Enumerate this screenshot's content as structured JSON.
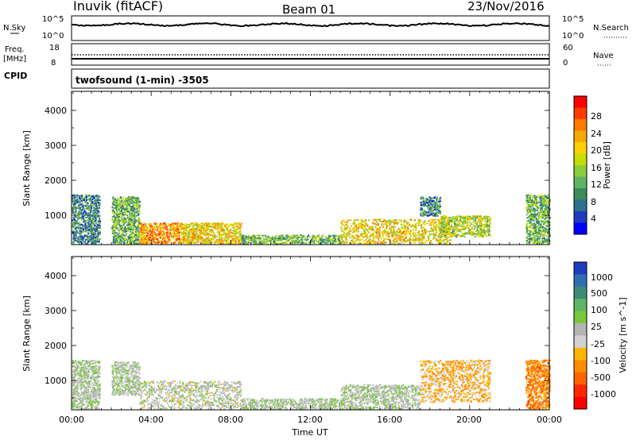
{
  "header": {
    "station": "Inuvik (fitACF)",
    "beam": "Beam 01",
    "date": "23/Nov/2016"
  },
  "noise_panel": {
    "left_label": "N.Sky",
    "left_ticks": [
      "10^5",
      "10^0"
    ],
    "right_label": "N.Search",
    "right_ticks": [
      "10^5",
      "10^0"
    ]
  },
  "freq_panel": {
    "left_label": "Freq.",
    "left_unit": "[MHz]",
    "left_ticks": [
      "18",
      "8"
    ],
    "right_label": "Nave",
    "right_ticks": [
      "60",
      "0"
    ]
  },
  "cpid": {
    "label": "CPID",
    "value": "twofsound (1-min) -3505"
  },
  "axes": {
    "ylabel": "Slant Range [km]",
    "xlabel": "Time UT",
    "y_ticks": [
      "4000",
      "3000",
      "2000",
      "1000"
    ],
    "x_ticks": [
      "00:00",
      "04:00",
      "08:00",
      "12:00",
      "16:00",
      "20:00",
      "00:00"
    ]
  },
  "power_colorbar": {
    "label": "Power [dB]",
    "ticks": [
      "28",
      "24",
      "20",
      "16",
      "12",
      "8",
      "4"
    ],
    "colors": [
      "#ff0000",
      "#ff3a00",
      "#ff7800",
      "#f5a800",
      "#ffd000",
      "#c8dc00",
      "#8ccd3c",
      "#5fb464",
      "#3c8c5a",
      "#2f6e8c",
      "#1e3cbe",
      "#0000ff"
    ]
  },
  "velocity_colorbar": {
    "label": "Velocity [m s^-1]",
    "ticks": [
      "1000",
      "500",
      "100",
      "25",
      "-25",
      "-100",
      "-500",
      "-1000"
    ],
    "colors": [
      "#1e3cbe",
      "#2f6eb4",
      "#3c8c78",
      "#5fb464",
      "#78c83c",
      "#b4b4b4",
      "#d2d2d2",
      "#ffb400",
      "#ff8c00",
      "#ff6400",
      "#ff2800",
      "#ff0000"
    ]
  },
  "chart_data": [
    {
      "type": "heatmap",
      "title": "Power",
      "xlabel": "Time UT",
      "ylabel": "Slant Range [km]",
      "xlim": [
        "00:00",
        "24:00"
      ],
      "ylim": [
        180,
        4600
      ],
      "colorbar": {
        "label": "Power [dB]",
        "range": [
          0,
          32
        ]
      },
      "scatter_regions": [
        {
          "t_start": 0.0,
          "t_end": 1.4,
          "range_min": 200,
          "range_max": 1600,
          "typical_db": 8
        },
        {
          "t_start": 2.0,
          "t_end": 3.4,
          "range_min": 200,
          "range_max": 1550,
          "typical_db": 12
        },
        {
          "t_start": 3.4,
          "t_end": 5.4,
          "range_min": 200,
          "range_max": 800,
          "typical_db": 24
        },
        {
          "t_start": 5.4,
          "t_end": 8.5,
          "range_min": 200,
          "range_max": 800,
          "typical_db": 20
        },
        {
          "t_start": 8.5,
          "t_end": 13.5,
          "range_min": 200,
          "range_max": 450,
          "typical_db": 12
        },
        {
          "t_start": 13.5,
          "t_end": 19.0,
          "range_min": 200,
          "range_max": 900,
          "typical_db": 20
        },
        {
          "t_start": 17.5,
          "t_end": 18.5,
          "range_min": 1000,
          "range_max": 1550,
          "typical_db": 8
        },
        {
          "t_start": 18.5,
          "t_end": 21.0,
          "range_min": 400,
          "range_max": 1000,
          "typical_db": 16
        },
        {
          "t_start": 22.8,
          "t_end": 24.0,
          "range_min": 200,
          "range_max": 1600,
          "typical_db": 12
        }
      ]
    },
    {
      "type": "heatmap",
      "title": "Velocity",
      "xlabel": "Time UT",
      "ylabel": "Slant Range [km]",
      "xlim": [
        "00:00",
        "24:00"
      ],
      "ylim": [
        180,
        4600
      ],
      "colorbar": {
        "label": "Velocity [m s^-1]",
        "range": [
          -1000,
          1000
        ]
      },
      "scatter_regions": [
        {
          "t_start": 0.0,
          "t_end": 1.4,
          "range_min": 200,
          "range_max": 1600,
          "typical_ms": 100
        },
        {
          "t_start": 2.0,
          "t_end": 3.4,
          "range_min": 600,
          "range_max": 1550,
          "typical_ms": 100
        },
        {
          "t_start": 3.4,
          "t_end": 8.5,
          "range_min": 200,
          "range_max": 1000,
          "typical_ms": 25
        },
        {
          "t_start": 8.5,
          "t_end": 13.5,
          "range_min": 200,
          "range_max": 500,
          "typical_ms": 100
        },
        {
          "t_start": 13.5,
          "t_end": 17.5,
          "range_min": 200,
          "range_max": 900,
          "typical_ms": 100
        },
        {
          "t_start": 17.5,
          "t_end": 21.0,
          "range_min": 400,
          "range_max": 1600,
          "typical_ms": -300
        },
        {
          "t_start": 22.8,
          "t_end": 24.0,
          "range_min": 200,
          "range_max": 1600,
          "typical_ms": -500
        }
      ]
    }
  ]
}
